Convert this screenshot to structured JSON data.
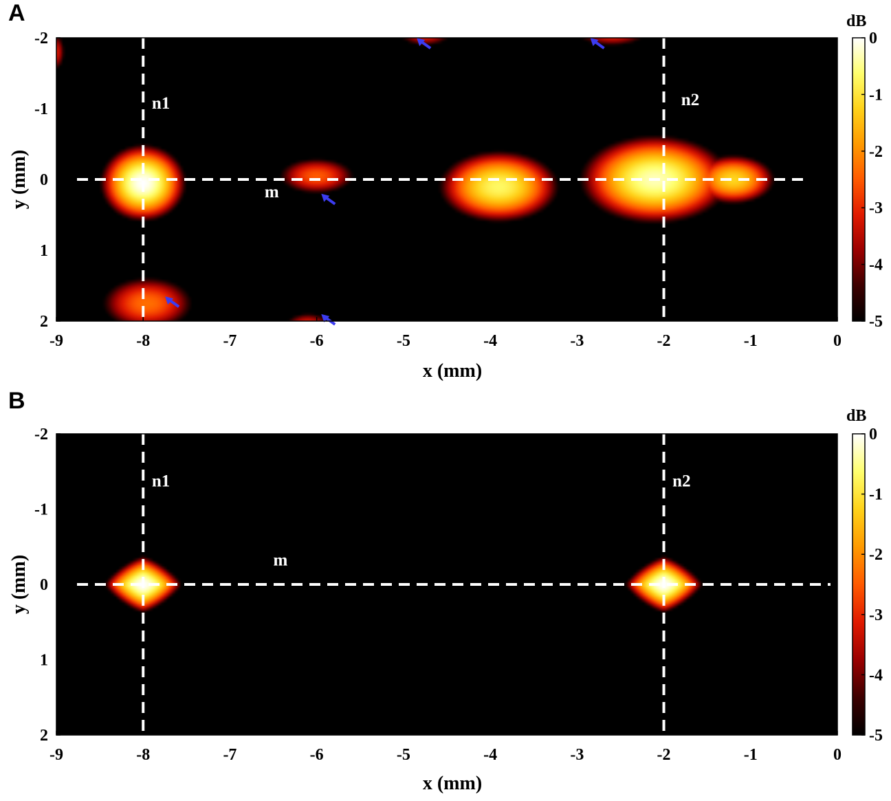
{
  "figure": {
    "panels": [
      "A",
      "B"
    ]
  },
  "colormap": {
    "name": "hot",
    "stops": [
      "#000000",
      "#3d0000",
      "#9b0000",
      "#e01a00",
      "#ff5a00",
      "#ff9a00",
      "#ffd21a",
      "#ffff6e",
      "#ffffff"
    ]
  },
  "colors": {
    "guide_lines": "#ffffff",
    "arrows": "#3c3cf0",
    "background": "#000000"
  },
  "chart_data": [
    {
      "type": "heatmap",
      "panel_label": "A",
      "xlabel": "x (mm)",
      "ylabel": "y (mm)",
      "xlim": [
        -9,
        0
      ],
      "ylim": [
        -2,
        2
      ],
      "y_axis_reversed": true,
      "x_ticks": [
        "-9",
        "-8",
        "-7",
        "-6",
        "-5",
        "-4",
        "-3",
        "-2",
        "-1",
        "0"
      ],
      "y_ticks": [
        "-2",
        "-1",
        "0",
        "1",
        "2"
      ],
      "colorbar": {
        "label": "dB",
        "range": [
          -5,
          0
        ],
        "ticks": [
          "0",
          "-1",
          "-2",
          "-3",
          "-4",
          "-5"
        ]
      },
      "guide_lines": {
        "vertical_x": [
          -8,
          -2
        ],
        "horizontal_y": [
          0
        ]
      },
      "annotations": [
        {
          "text": "n1",
          "x": -7.9,
          "y": -1.0
        },
        {
          "text": "n2",
          "x": -1.8,
          "y": -1.05
        },
        {
          "text": "m",
          "x": -6.6,
          "y": 0.25
        }
      ],
      "arrows_at": [
        {
          "x": -4.8,
          "y": -1.95
        },
        {
          "x": -2.8,
          "y": -1.95
        },
        {
          "x": -5.9,
          "y": 0.25
        },
        {
          "x": -7.7,
          "y": 1.7
        },
        {
          "x": -5.9,
          "y": 1.95
        }
      ],
      "hotspots_db": [
        {
          "x": -8.0,
          "y": 0.05,
          "peak": 0.0,
          "sx": 0.5,
          "sy": 0.55
        },
        {
          "x": -6.0,
          "y": -0.05,
          "peak": -2.5,
          "sx": 0.6,
          "sy": 0.35
        },
        {
          "x": -3.9,
          "y": 0.1,
          "peak": -0.7,
          "sx": 0.75,
          "sy": 0.55
        },
        {
          "x": -2.1,
          "y": 0.0,
          "peak": -0.3,
          "sx": 0.9,
          "sy": 0.65
        },
        {
          "x": -1.2,
          "y": 0.0,
          "peak": -1.2,
          "sx": 0.55,
          "sy": 0.4
        },
        {
          "x": -7.95,
          "y": 1.75,
          "peak": -2.3,
          "sx": 0.7,
          "sy": 0.5
        },
        {
          "x": -6.1,
          "y": 2.05,
          "peak": -3.0,
          "sx": 0.4,
          "sy": 0.25
        },
        {
          "x": -4.75,
          "y": -2.05,
          "peak": -3.0,
          "sx": 0.45,
          "sy": 0.25
        },
        {
          "x": -2.6,
          "y": -2.05,
          "peak": -3.0,
          "sx": 0.6,
          "sy": 0.25
        },
        {
          "x": -9.0,
          "y": -1.8,
          "peak": -3.2,
          "sx": 0.15,
          "sy": 0.4
        }
      ]
    },
    {
      "type": "heatmap",
      "panel_label": "B",
      "xlabel": "x (mm)",
      "ylabel": "y (mm)",
      "xlim": [
        -9,
        0
      ],
      "ylim": [
        -2,
        2
      ],
      "y_axis_reversed": true,
      "x_ticks": [
        "-9",
        "-8",
        "-7",
        "-6",
        "-5",
        "-4",
        "-3",
        "-2",
        "-1",
        "0"
      ],
      "y_ticks": [
        "-2",
        "-1",
        "0",
        "1",
        "2"
      ],
      "colorbar": {
        "label": "dB",
        "range": [
          -5,
          0
        ],
        "ticks": [
          "0",
          "-1",
          "-2",
          "-3",
          "-4",
          "-5"
        ]
      },
      "guide_lines": {
        "vertical_x": [
          -8,
          -2
        ],
        "horizontal_y": [
          0
        ]
      },
      "annotations": [
        {
          "text": "n1",
          "x": -7.9,
          "y": -1.3
        },
        {
          "text": "n2",
          "x": -1.9,
          "y": -1.3
        },
        {
          "text": "m",
          "x": -6.5,
          "y": -0.25
        }
      ],
      "arrows_at": [],
      "hotspots_db": [
        {
          "x": -8.0,
          "y": 0.0,
          "peak": 0.0,
          "sx": 0.45,
          "sy": 0.38,
          "diamond": true
        },
        {
          "x": -2.0,
          "y": 0.0,
          "peak": 0.0,
          "sx": 0.45,
          "sy": 0.38,
          "diamond": true
        }
      ]
    }
  ]
}
